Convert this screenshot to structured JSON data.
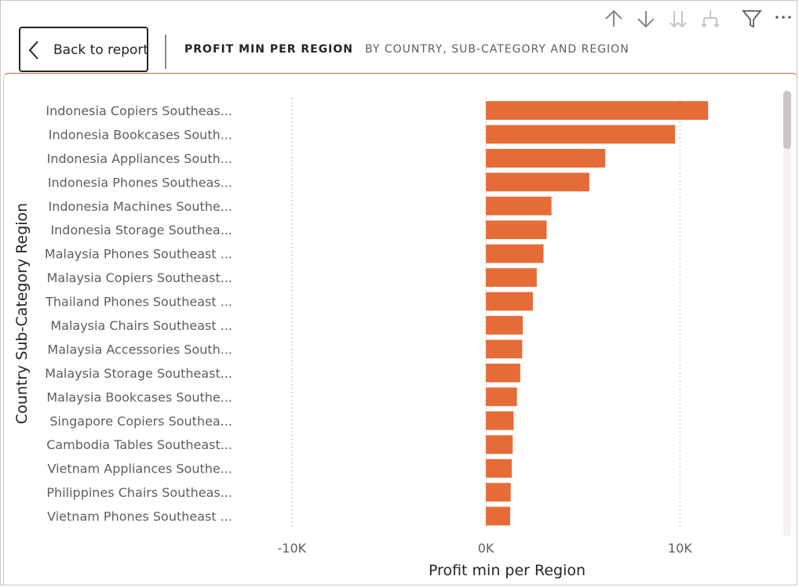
{
  "header": {
    "back_label": "Back to report",
    "crumbs": [
      {
        "label": "PROFIT MIN PER REGION"
      },
      {
        "label": "BY COUNTRY, SUB-CATEGORY AND REGION"
      }
    ],
    "tools": [
      {
        "icon": "arrow-up-icon"
      },
      {
        "icon": "arrow-down-icon"
      },
      {
        "icon": "double-arrow-down-icon"
      },
      {
        "icon": "expand-hierarchy-icon"
      },
      {
        "icon": "filter-icon"
      },
      {
        "icon": "more-options-icon"
      }
    ]
  },
  "colors": {
    "bar": "#E66C37",
    "grid": "#c8c6c4",
    "text": "#605e5c"
  },
  "chart_data": {
    "type": "bar",
    "orientation": "horizontal",
    "xlabel": "Profit min per Region",
    "ylabel": "Country Sub-Category Region",
    "xlim": [
      -12500,
      15000
    ],
    "xticks": [
      -10000,
      0,
      10000
    ],
    "xtick_labels": [
      "-10K",
      "0K",
      "10K"
    ],
    "grid": true,
    "categories": [
      "Indonesia Copiers Southeas...",
      "Indonesia Bookcases South...",
      "Indonesia Appliances South...",
      "Indonesia Phones Southeas...",
      "Indonesia Machines Southe...",
      "Indonesia Storage Southea...",
      "Malaysia Phones Southeast ...",
      "Malaysia Copiers Southeast...",
      "Thailand Phones Southeast ...",
      "Malaysia Chairs Southeast ...",
      "Malaysia Accessories South...",
      "Malaysia Storage Southeast...",
      "Malaysia Bookcases Southe...",
      "Singapore Copiers Southea...",
      "Cambodia Tables Southeast...",
      "Vietnam Appliances Southe...",
      "Philippines Chairs Southeas...",
      "Vietnam Phones Southeast ..."
    ],
    "values": [
      11450,
      9750,
      6150,
      5330,
      3380,
      3130,
      2970,
      2620,
      2420,
      1900,
      1870,
      1770,
      1600,
      1430,
      1380,
      1330,
      1280,
      1250
    ]
  }
}
